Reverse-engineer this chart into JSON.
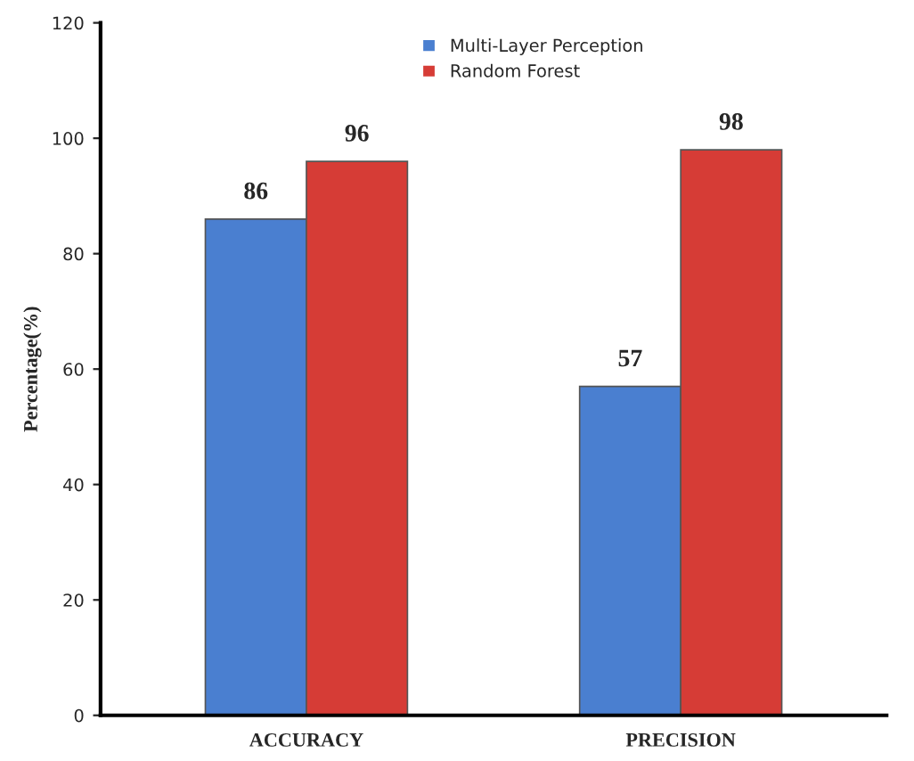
{
  "chart_data": {
    "type": "bar",
    "ylabel": "Percentage(%)",
    "categories": [
      "ACCURACY",
      "PRECISION"
    ],
    "series": [
      {
        "name": "Multi-Layer Perception",
        "color": "#4a7fd0",
        "values": [
          86,
          57
        ]
      },
      {
        "name": "Random Forest",
        "color": "#d63c36",
        "values": [
          96,
          98
        ]
      }
    ],
    "ylim": [
      0,
      120
    ],
    "yticks": [
      0,
      20,
      40,
      60,
      80,
      100,
      120
    ],
    "data_labels": true,
    "legend": "top",
    "grid": false
  }
}
